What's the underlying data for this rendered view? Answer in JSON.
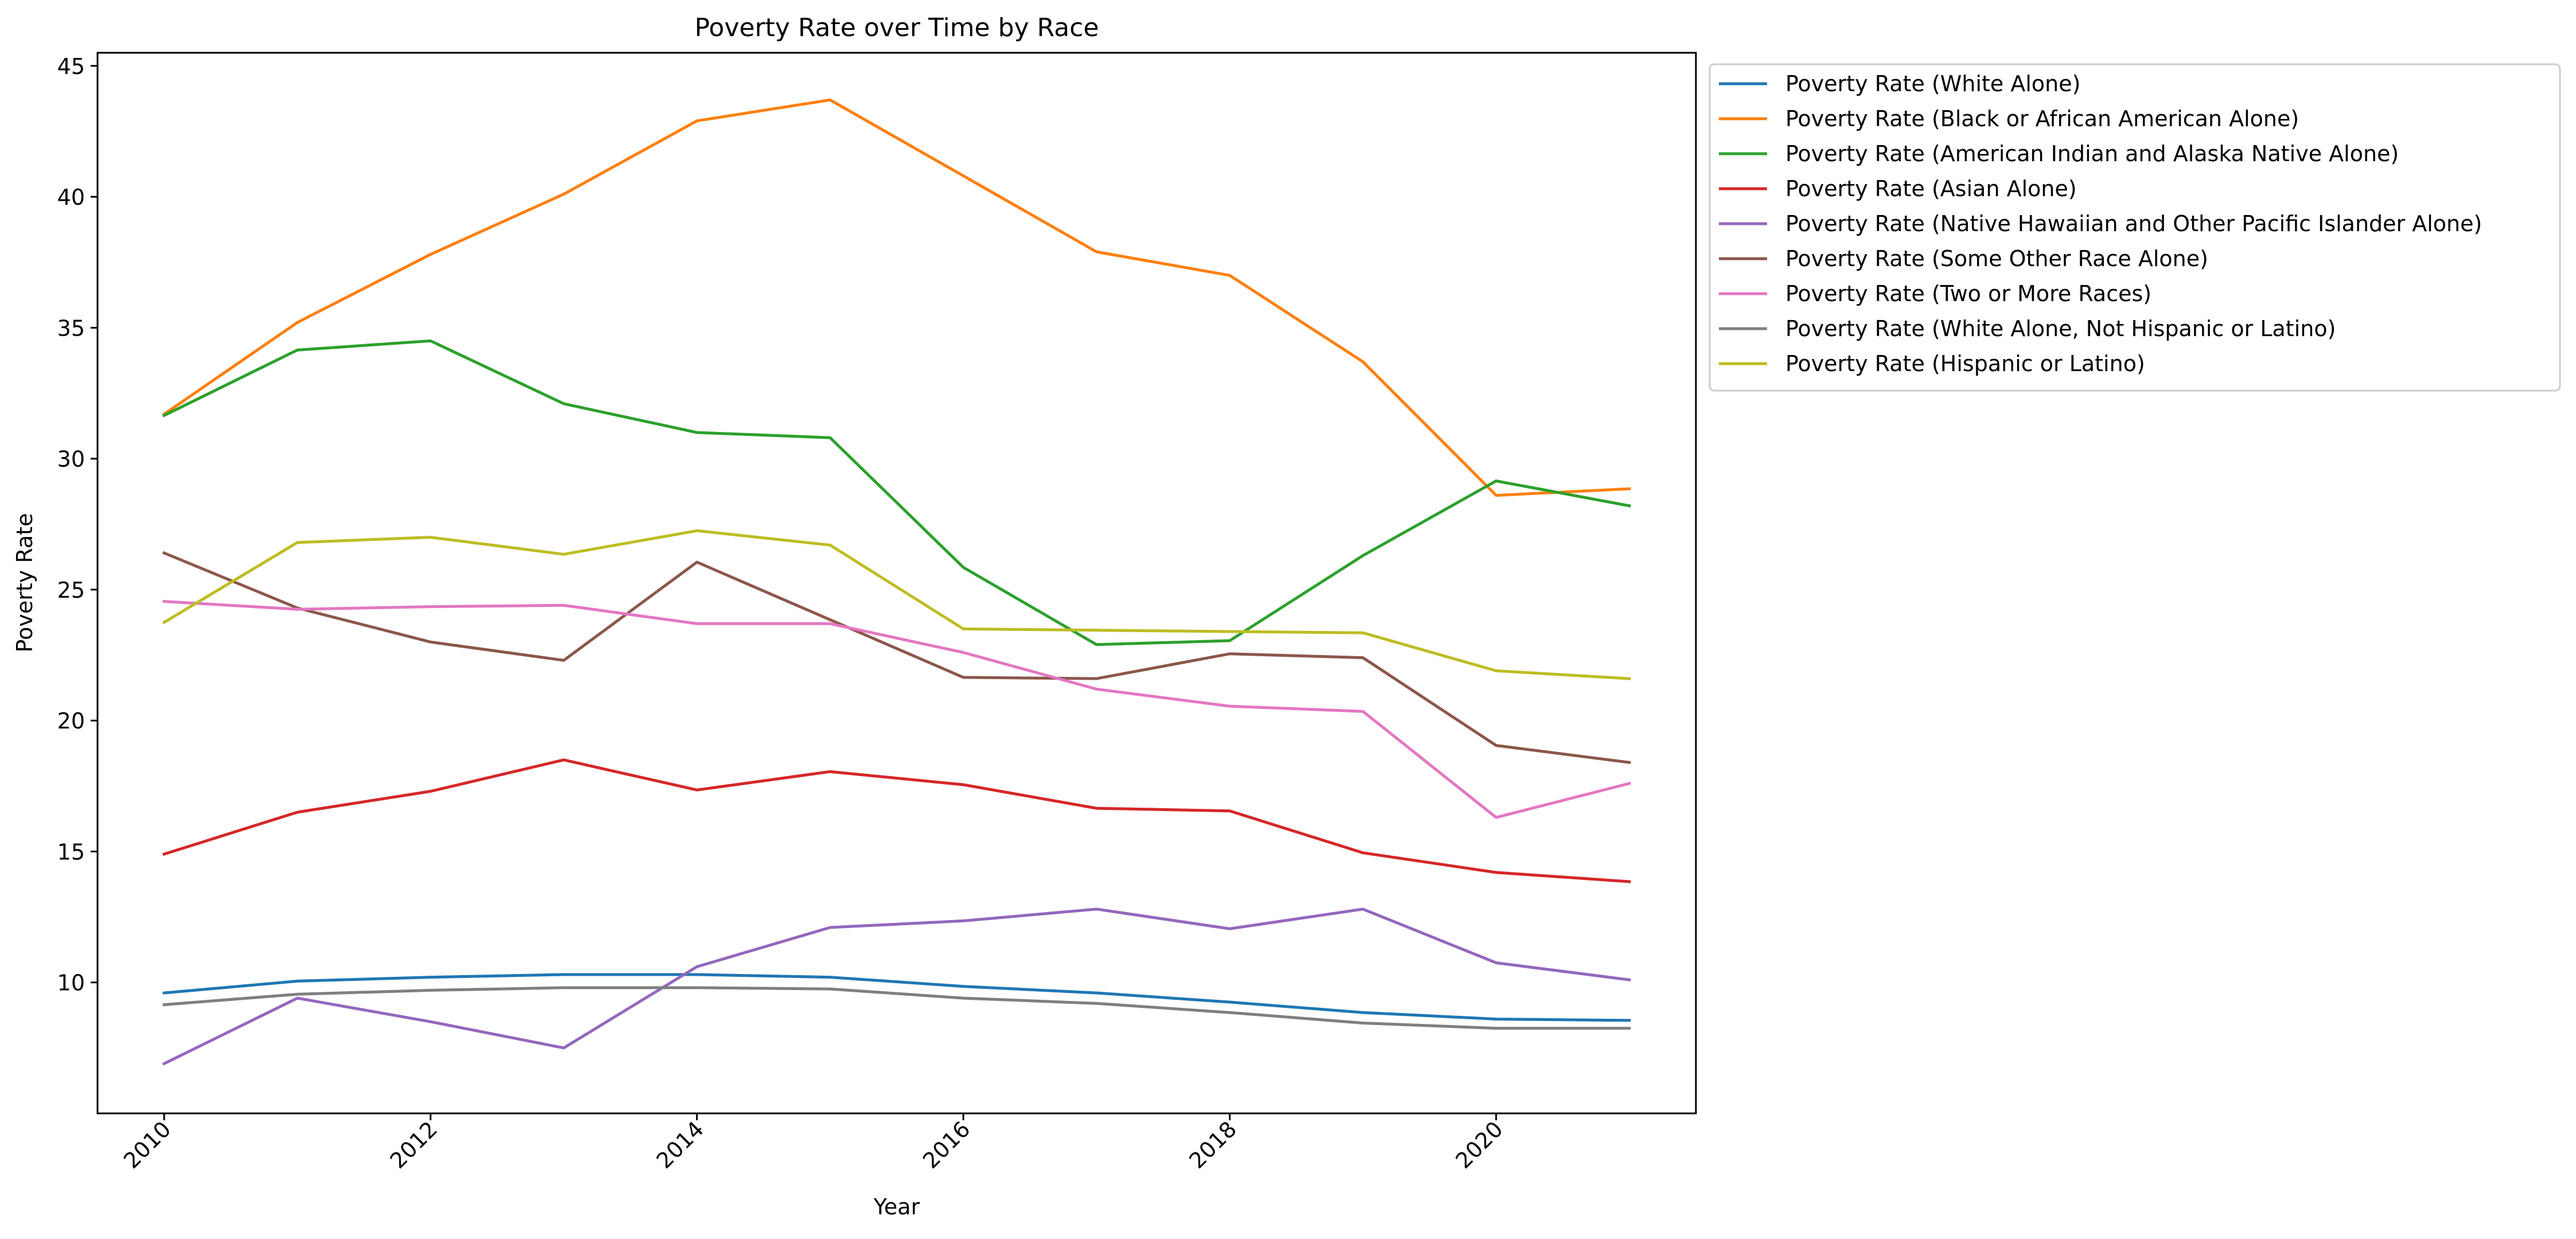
{
  "chart_data": {
    "type": "line",
    "title": "Poverty Rate over Time by Race",
    "xlabel": "Year",
    "ylabel": "Poverty Rate",
    "xlim": [
      2009.5,
      2021.5
    ],
    "ylim": [
      5.0,
      45.5
    ],
    "x_ticks": [
      2010,
      2012,
      2014,
      2016,
      2018,
      2020
    ],
    "y_ticks": [
      10,
      15,
      20,
      25,
      30,
      35,
      40,
      45
    ],
    "grid": false,
    "legend_position": "outside upper right",
    "x": [
      2010,
      2011,
      2012,
      2013,
      2014,
      2015,
      2016,
      2017,
      2018,
      2019,
      2020,
      2021
    ],
    "series": [
      {
        "name": "Poverty Rate (White Alone)",
        "color": "#1f77b4",
        "values": [
          9.6,
          10.05,
          10.2,
          10.3,
          10.3,
          10.2,
          9.85,
          9.6,
          9.25,
          8.85,
          8.6,
          8.55
        ]
      },
      {
        "name": "Poverty Rate (Black or African American Alone)",
        "color": "#ff7f0e",
        "values": [
          31.7,
          35.2,
          37.8,
          40.1,
          42.9,
          43.7,
          40.8,
          37.9,
          37.0,
          33.7,
          28.6,
          28.85
        ]
      },
      {
        "name": "Poverty Rate (American Indian and Alaska Native Alone)",
        "color": "#2ca02c",
        "values": [
          31.65,
          34.15,
          34.5,
          32.1,
          31.0,
          30.8,
          25.85,
          22.9,
          23.05,
          26.3,
          29.15,
          28.2
        ]
      },
      {
        "name": "Poverty Rate (Asian Alone)",
        "color": "#d62728",
        "values": [
          14.9,
          16.5,
          17.3,
          18.5,
          17.35,
          18.05,
          17.55,
          16.65,
          16.55,
          14.95,
          14.2,
          13.85
        ]
      },
      {
        "name": "Poverty Rate (Native Hawaiian and Other Pacific Islander Alone)",
        "color": "#9467bd",
        "values": [
          6.9,
          9.4,
          8.5,
          7.5,
          10.6,
          12.1,
          12.35,
          12.8,
          12.05,
          12.8,
          10.75,
          10.1
        ]
      },
      {
        "name": "Poverty Rate (Some Other Race Alone)",
        "color": "#8c564b",
        "values": [
          26.4,
          24.3,
          23.0,
          22.3,
          26.05,
          23.85,
          21.65,
          21.6,
          22.55,
          22.4,
          19.05,
          18.4
        ]
      },
      {
        "name": "Poverty Rate (Two or More Races)",
        "color": "#e377c2",
        "values": [
          24.55,
          24.25,
          24.35,
          24.4,
          23.7,
          23.7,
          22.6,
          21.2,
          20.55,
          20.35,
          16.3,
          17.6
        ]
      },
      {
        "name": "Poverty Rate (White Alone, Not Hispanic or Latino)",
        "color": "#7f7f7f",
        "values": [
          9.15,
          9.55,
          9.7,
          9.8,
          9.8,
          9.75,
          9.4,
          9.2,
          8.85,
          8.45,
          8.25,
          8.25
        ]
      },
      {
        "name": "Poverty Rate (Hispanic or Latino)",
        "color": "#bcbd22",
        "values": [
          23.75,
          26.8,
          27.0,
          26.35,
          27.25,
          26.7,
          23.5,
          23.45,
          23.4,
          23.35,
          21.9,
          21.6
        ]
      }
    ]
  }
}
